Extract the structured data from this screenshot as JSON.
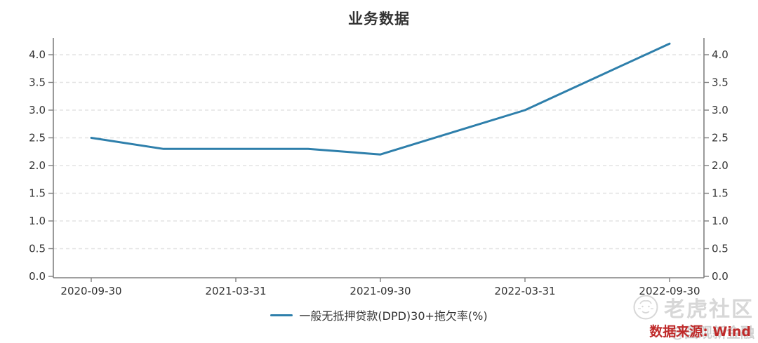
{
  "title": "业务数据",
  "legend": {
    "label": "一般无抵押贷款(DPD)30+拖欠率(%)"
  },
  "source": {
    "text": "数据来源: Wind",
    "color": "#bf2a2a"
  },
  "watermark": {
    "community": "老虎社区",
    "account": "@国观新金融"
  },
  "colors": {
    "series_line": "#2e7fab",
    "axis": "#808080",
    "grid": "#e4e4e4",
    "tick_text": "#333333"
  },
  "chart_data": {
    "type": "line",
    "title": "业务数据",
    "x": [
      "2020-09-30",
      "2020-12-31",
      "2021-03-31",
      "2021-06-30",
      "2021-09-30",
      "2021-12-31",
      "2022-03-31",
      "2022-06-30",
      "2022-09-30"
    ],
    "series": [
      {
        "name": "一般无抵押贷款(DPD)30+拖欠率(%)",
        "color": "#2e7fab",
        "values": [
          2.5,
          2.3,
          2.3,
          2.3,
          2.2,
          2.6,
          3.0,
          3.6,
          4.2
        ]
      }
    ],
    "x_tick_labels": [
      "2020-09-30",
      "2021-03-31",
      "2021-09-30",
      "2022-03-31",
      "2022-09-30"
    ],
    "x_tick_indices": [
      0,
      2,
      4,
      6,
      8
    ],
    "y_ticks": [
      0.0,
      0.5,
      1.0,
      1.5,
      2.0,
      2.5,
      3.0,
      3.5,
      4.0
    ],
    "ylim": [
      0,
      4.33
    ],
    "dual_y_axis": "mirrored",
    "grid": "horizontal-dashed",
    "legend_position": "bottom"
  }
}
